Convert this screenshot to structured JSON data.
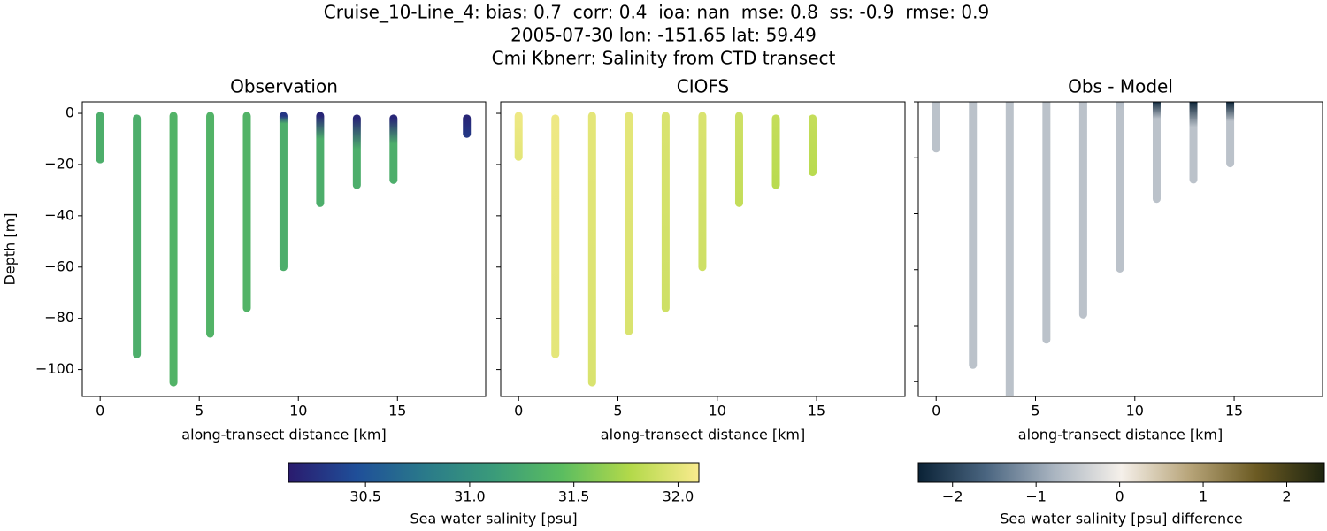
{
  "figure": {
    "title_lines": [
      "Cruise_10-Line_4: bias: 0.7  corr: 0.4  ioa: nan  mse: 0.8  ss: -0.9  rmse: 0.9",
      "2005-07-30 lon: -151.65 lat: 59.49",
      "Cmi Kbnerr: Salinity from CTD transect"
    ]
  },
  "colorbars": [
    {
      "label": "Sea water salinity [psu]",
      "clim": [
        30.13,
        32.1
      ],
      "colors": [
        "#2a1b6e",
        "#1f4f99",
        "#2a7a8a",
        "#3a9b7a",
        "#5bbd60",
        "#b3d94a",
        "#f9eb8e"
      ],
      "ticks": [
        30.5,
        {
          "value": 31,
          "label": "31.0"
        },
        31.5,
        {
          "value": 32,
          "label": "32.0"
        }
      ]
    },
    {
      "label": "Sea water salinity [psu] difference",
      "clim": [
        -2.41,
        2.45
      ],
      "colors": [
        "#0a2236",
        "#4a6580",
        "#a9b4c0",
        "#f5f0ea",
        "#b8a57a",
        "#6b5a22",
        "#1d2410"
      ],
      "ticks": [
        {
          "value": -2,
          "label": "−2"
        },
        {
          "value": -1,
          "label": "−1"
        },
        0,
        1,
        2
      ]
    }
  ],
  "chart_data": [
    {
      "type": "column-scatter",
      "title": "Observation",
      "xlabel": "along-transect distance [km]",
      "ylabel": "Depth [m]",
      "xlim": [
        -0.9,
        19.45
      ],
      "xticks": [
        0,
        5,
        10,
        15
      ],
      "ylim": [
        -110.5,
        4.5
      ],
      "yticks": [
        0,
        {
          "value": -20,
          "label": "−20"
        },
        {
          "value": -40,
          "label": "−40"
        },
        {
          "value": -60,
          "label": "−60"
        },
        {
          "value": -80,
          "label": "−80"
        },
        {
          "value": -100,
          "label": "−100"
        }
      ],
      "x": [
        0,
        1.85,
        3.7,
        5.55,
        7.4,
        9.25,
        11.1,
        12.95,
        14.8,
        18.5
      ],
      "top": [
        -1,
        -2,
        -1,
        -1,
        -1,
        -1,
        -1,
        -2,
        -2,
        -2
      ],
      "bottom": [
        -18,
        -94,
        -105,
        -86,
        -76,
        -60,
        -35,
        -28,
        -26,
        -8
      ],
      "surface": [
        31.3,
        31.3,
        31.35,
        31.35,
        31.35,
        30.3,
        30.2,
        30.2,
        30.2,
        30.2
      ],
      "mix_depth": [
        -18,
        -94,
        -105,
        -86,
        -76,
        -4,
        -10,
        -14,
        -12,
        -8
      ],
      "deep": [
        31.3,
        31.3,
        31.35,
        31.35,
        31.35,
        31.3,
        31.3,
        31.3,
        31.3,
        30.3
      ]
    },
    {
      "type": "column-scatter",
      "title": "CIOFS",
      "xlabel": "along-transect distance [km]",
      "xlim": [
        -0.9,
        19.45
      ],
      "xticks": [
        0,
        5,
        10,
        15
      ],
      "ylim": [
        -110.5,
        4.5
      ],
      "yticks": [
        0,
        -20,
        -40,
        -60,
        -80,
        -100
      ],
      "x": [
        0,
        1.85,
        3.7,
        5.55,
        7.4,
        9.25,
        11.1,
        12.95,
        14.8
      ],
      "top": [
        -1,
        -2,
        -1,
        -1,
        -1,
        -1,
        -1,
        -2,
        -2
      ],
      "bottom": [
        -17,
        -94,
        -105,
        -85,
        -76,
        -60,
        -35,
        -28,
        -23
      ],
      "surface": [
        32.05,
        32.05,
        32,
        32,
        31.95,
        31.95,
        31.9,
        31.85,
        31.85
      ],
      "mix_depth": [
        -17,
        -94,
        -105,
        -85,
        -76,
        -60,
        -35,
        -28,
        -23
      ],
      "deep": [
        32,
        32,
        31.95,
        31.95,
        31.9,
        31.9,
        31.85,
        31.8,
        31.8
      ]
    },
    {
      "type": "column-scatter",
      "title": "Obs - Model",
      "xlabel": "along-transect distance [km]",
      "xlim": [
        -0.9,
        19.45
      ],
      "xticks": [
        0,
        5,
        10,
        15
      ],
      "ylim": [
        -105.3,
        0
      ],
      "yticks": [
        0,
        -20,
        -40,
        -60,
        -80,
        -100
      ],
      "x": [
        0,
        1.85,
        3.7,
        5.55,
        7.4,
        9.25,
        11.1,
        12.95,
        14.8
      ],
      "top": [
        0,
        0,
        0,
        0,
        0,
        0,
        0,
        0,
        0
      ],
      "bottom": [
        -16.7,
        -94,
        -110,
        -85,
        -76,
        -59.6,
        -34.7,
        -27.8,
        -22
      ],
      "surface": [
        -0.6,
        -0.6,
        -0.6,
        -0.6,
        -0.6,
        -0.7,
        -2.3,
        -2.4,
        -2.4
      ],
      "mix_depth": [
        -16.7,
        -94,
        -110,
        -85,
        -76,
        -3,
        -6,
        -9,
        -7
      ],
      "deep": [
        -0.6,
        -0.6,
        -0.6,
        -0.6,
        -0.6,
        -0.6,
        -0.6,
        -0.6,
        -0.6
      ]
    }
  ]
}
